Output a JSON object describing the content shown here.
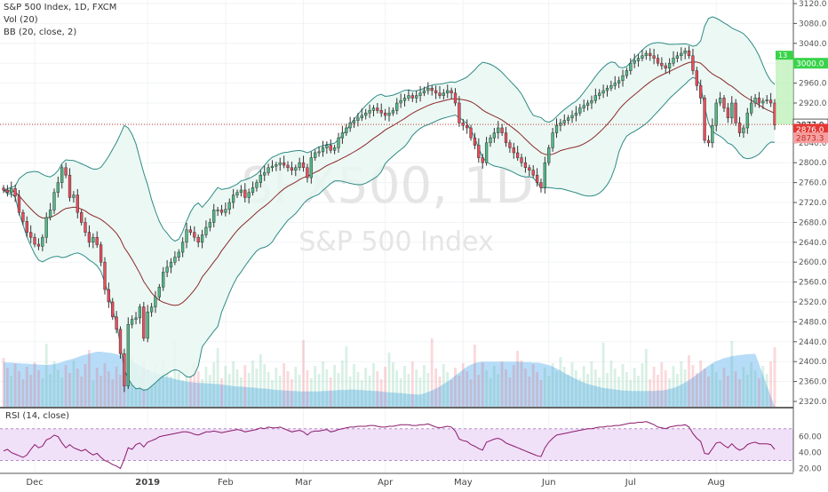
{
  "legend": {
    "main": "S&P 500 Index, 1D, FXCM",
    "vol": "Vol (20)",
    "bb": "BB (20, close, 2)",
    "rsi": "RSI (14, close)"
  },
  "watermark": {
    "symbol": "SPX500, 1D",
    "name": "S&P 500 Index"
  },
  "colors": {
    "up": "#53b987",
    "down": "#eb4d5c",
    "band": "#2e8b85",
    "basis": "#8b2a2a",
    "volume_ma": "#9ed0f5",
    "rsi_line": "#8b1a6b",
    "rsi_fill": "#f0e0f8",
    "band_fill": "#e9f7f2",
    "price_line": "#c0392b"
  },
  "price_labels": {
    "top_tag": "3000.0",
    "top_tag_small": "13",
    "current": "2877.0",
    "close_red": "2876.0",
    "low_red": "2873.3"
  },
  "chart_data": [
    {
      "type": "line",
      "title": "",
      "name": "price_axis",
      "y_ticks": [
        "3120.0",
        "3080.0",
        "3040.0",
        "3000.0",
        "2960.0",
        "2920.0",
        "2880.0",
        "2840.0",
        "2800.0",
        "2760.0",
        "2720.0",
        "2680.0",
        "2640.0",
        "2600.0",
        "2560.0",
        "2520.0",
        "2480.0",
        "2440.0",
        "2400.0",
        "2360.0",
        "2320.0"
      ],
      "ylim": [
        2300,
        3130
      ],
      "x_ticks": [
        "Dec",
        "2019",
        "Feb",
        "Mar",
        "Apr",
        "May",
        "Jun",
        "Jul",
        "Aug"
      ],
      "x_tick_index": [
        8,
        37,
        57,
        77,
        98,
        118,
        140,
        161,
        183
      ],
      "close": [
        2745,
        2740,
        2748,
        2733,
        2700,
        2682,
        2660,
        2650,
        2636,
        2632,
        2650,
        2690,
        2705,
        2740,
        2760,
        2790,
        2775,
        2730,
        2735,
        2700,
        2680,
        2660,
        2640,
        2650,
        2635,
        2600,
        2545,
        2520,
        2490,
        2465,
        2416,
        2351,
        2475,
        2485,
        2488,
        2510,
        2447,
        2500,
        2510,
        2530,
        2550,
        2580,
        2590,
        2600,
        2610,
        2620,
        2640,
        2665,
        2660,
        2650,
        2640,
        2655,
        2670,
        2680,
        2705,
        2705,
        2700,
        2706,
        2720,
        2735,
        2740,
        2745,
        2730,
        2740,
        2750,
        2760,
        2775,
        2780,
        2790,
        2793,
        2796,
        2800,
        2795,
        2790,
        2785,
        2790,
        2800,
        2790,
        2770,
        2810,
        2820,
        2822,
        2830,
        2835,
        2825,
        2830,
        2850,
        2860,
        2870,
        2880,
        2885,
        2890,
        2895,
        2900,
        2905,
        2910,
        2905,
        2900,
        2895,
        2900,
        2905,
        2920,
        2925,
        2930,
        2935,
        2930,
        2935,
        2940,
        2945,
        2950,
        2945,
        2940,
        2935,
        2940,
        2945,
        2940,
        2920,
        2880,
        2875,
        2870,
        2850,
        2835,
        2810,
        2800,
        2840,
        2850,
        2860,
        2870,
        2860,
        2840,
        2830,
        2820,
        2810,
        2800,
        2790,
        2785,
        2775,
        2760,
        2750,
        2800,
        2830,
        2860,
        2875,
        2880,
        2885,
        2890,
        2895,
        2900,
        2910,
        2915,
        2920,
        2925,
        2935,
        2940,
        2945,
        2950,
        2955,
        2960,
        2965,
        2975,
        2985,
        3000,
        3005,
        3010,
        3015,
        3020,
        3015,
        3010,
        3000,
        2995,
        2990,
        3000,
        3010,
        3015,
        3020,
        3025,
        3015,
        2985,
        2955,
        2930,
        2845,
        2840,
        2875,
        2920,
        2930,
        2910,
        2890,
        2920,
        2880,
        2860,
        2870,
        2900,
        2920,
        2930,
        2920,
        2924,
        2926,
        2920,
        2876
      ],
      "volume_ma_top": [
        2399,
        2398,
        2398,
        2397,
        2397,
        2396,
        2396,
        2395,
        2395,
        2394,
        2394,
        2393,
        2394,
        2395,
        2397,
        2399,
        2402,
        2404,
        2406,
        2409,
        2412,
        2414,
        2416,
        2418,
        2420,
        2420,
        2419,
        2418,
        2417,
        2415,
        2412,
        2409,
        2406,
        2402,
        2397,
        2393,
        2388,
        2384,
        2380,
        2377,
        2374,
        2371,
        2369,
        2367,
        2365,
        2363,
        2361,
        2360,
        2359,
        2358,
        2357,
        2357,
        2356,
        2356,
        2355,
        2355,
        2354,
        2353,
        2352,
        2351,
        2350,
        2350,
        2349,
        2348,
        2348,
        2347,
        2346,
        2346,
        2345,
        2344,
        2343,
        2343,
        2342,
        2342,
        2341,
        2341,
        2340,
        2340,
        2340,
        2340,
        2340,
        2340,
        2341,
        2341,
        2342,
        2342,
        2343,
        2343,
        2343,
        2344,
        2344,
        2343,
        2343,
        2342,
        2342,
        2341,
        2341,
        2340,
        2339,
        2338,
        2338,
        2337,
        2337,
        2336,
        2335,
        2335,
        2334,
        2334,
        2336,
        2339,
        2342,
        2346,
        2350,
        2355,
        2360,
        2366,
        2372,
        2378,
        2384,
        2390,
        2394,
        2397,
        2399,
        2400,
        2400,
        2400,
        2400,
        2400,
        2400,
        2400,
        2400,
        2400,
        2400,
        2399,
        2399,
        2399,
        2398,
        2398,
        2397,
        2395,
        2393,
        2390,
        2386,
        2382,
        2377,
        2373,
        2369,
        2365,
        2361,
        2358,
        2355,
        2353,
        2351,
        2349,
        2347,
        2346,
        2345,
        2344,
        2343,
        2342,
        2342,
        2341,
        2341,
        2341,
        2341,
        2341,
        2341,
        2341,
        2342,
        2342,
        2343,
        2345,
        2347,
        2350,
        2354,
        2358,
        2363,
        2368,
        2374,
        2380,
        2386,
        2392,
        2397,
        2401,
        2404,
        2407,
        2409,
        2411,
        2412,
        2413,
        2414,
        2415,
        2415,
        2416
      ],
      "rsi": [
        42,
        44,
        40,
        38,
        36,
        34,
        37,
        44,
        50,
        46,
        48,
        56,
        58,
        62,
        60,
        52,
        46,
        50,
        46,
        44,
        42,
        44,
        40,
        37,
        39,
        34,
        30,
        28,
        25,
        23,
        20,
        32,
        46,
        44,
        50,
        52,
        47,
        53,
        55,
        57,
        60,
        61,
        62,
        63,
        64,
        65,
        66,
        66,
        65,
        63,
        62,
        64,
        66,
        66,
        67,
        66,
        65,
        66,
        67,
        68,
        69,
        68,
        66,
        67,
        68,
        69,
        71,
        70,
        72,
        71,
        71,
        72,
        70,
        68,
        66,
        67,
        68,
        66,
        62,
        66,
        67,
        67,
        68,
        69,
        66,
        67,
        69,
        70,
        71,
        72,
        72,
        73,
        73,
        73,
        74,
        74,
        73,
        72,
        72,
        73,
        73,
        74,
        75,
        75,
        75,
        74,
        74,
        75,
        75,
        76,
        74,
        72,
        71,
        72,
        73,
        72,
        67,
        57,
        55,
        54,
        50,
        48,
        45,
        43,
        53,
        55,
        57,
        58,
        56,
        52,
        50,
        48,
        46,
        44,
        42,
        40,
        38,
        36,
        35,
        46,
        53,
        58,
        62,
        63,
        64,
        65,
        66,
        67,
        68,
        69,
        70,
        70,
        71,
        72,
        72,
        73,
        73,
        74,
        74,
        75,
        76,
        77,
        77,
        78,
        78,
        79,
        77,
        75,
        72,
        71,
        70,
        72,
        73,
        74,
        74,
        75,
        72,
        64,
        58,
        54,
        39,
        38,
        45,
        52,
        53,
        49,
        46,
        51,
        46,
        43,
        45,
        50,
        52,
        53,
        51,
        51,
        51,
        50,
        44
      ],
      "rsi_ticks": [
        "60.00",
        "40.00",
        "20.00"
      ],
      "rsi_ylim": [
        15,
        92
      ]
    }
  ]
}
